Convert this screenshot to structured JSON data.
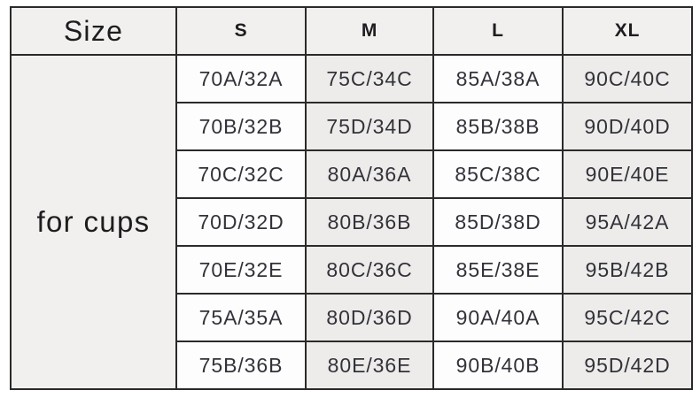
{
  "table": {
    "header": {
      "size_label": "Size",
      "columns": [
        "S",
        "M",
        "L",
        "XL"
      ]
    },
    "row_group_label": "for cups",
    "rows": [
      [
        "70A/32A",
        "75C/34C",
        "85A/38A",
        "90C/40C"
      ],
      [
        "70B/32B",
        "75D/34D",
        "85B/38B",
        "90D/40D"
      ],
      [
        "70C/32C",
        "80A/36A",
        "85C/38C",
        "90E/40E"
      ],
      [
        "70D/32D",
        "80B/36B",
        "85D/38D",
        "95A/42A"
      ],
      [
        "70E/32E",
        "80C/36C",
        "85E/38E",
        "95B/42B"
      ],
      [
        "75A/35A",
        "80D/36D",
        "90A/40A",
        "95C/42C"
      ],
      [
        "75B/36B",
        "80E/36E",
        "90B/40B",
        "95D/42D"
      ]
    ],
    "colors": {
      "border": "#2a2a2a",
      "header_background": "#f1f0ef",
      "cell_background_light": "#fdfdfd",
      "cell_background_shaded": "#edecea",
      "header_text": "#1d1d1f",
      "data_text": "#32323a"
    }
  }
}
